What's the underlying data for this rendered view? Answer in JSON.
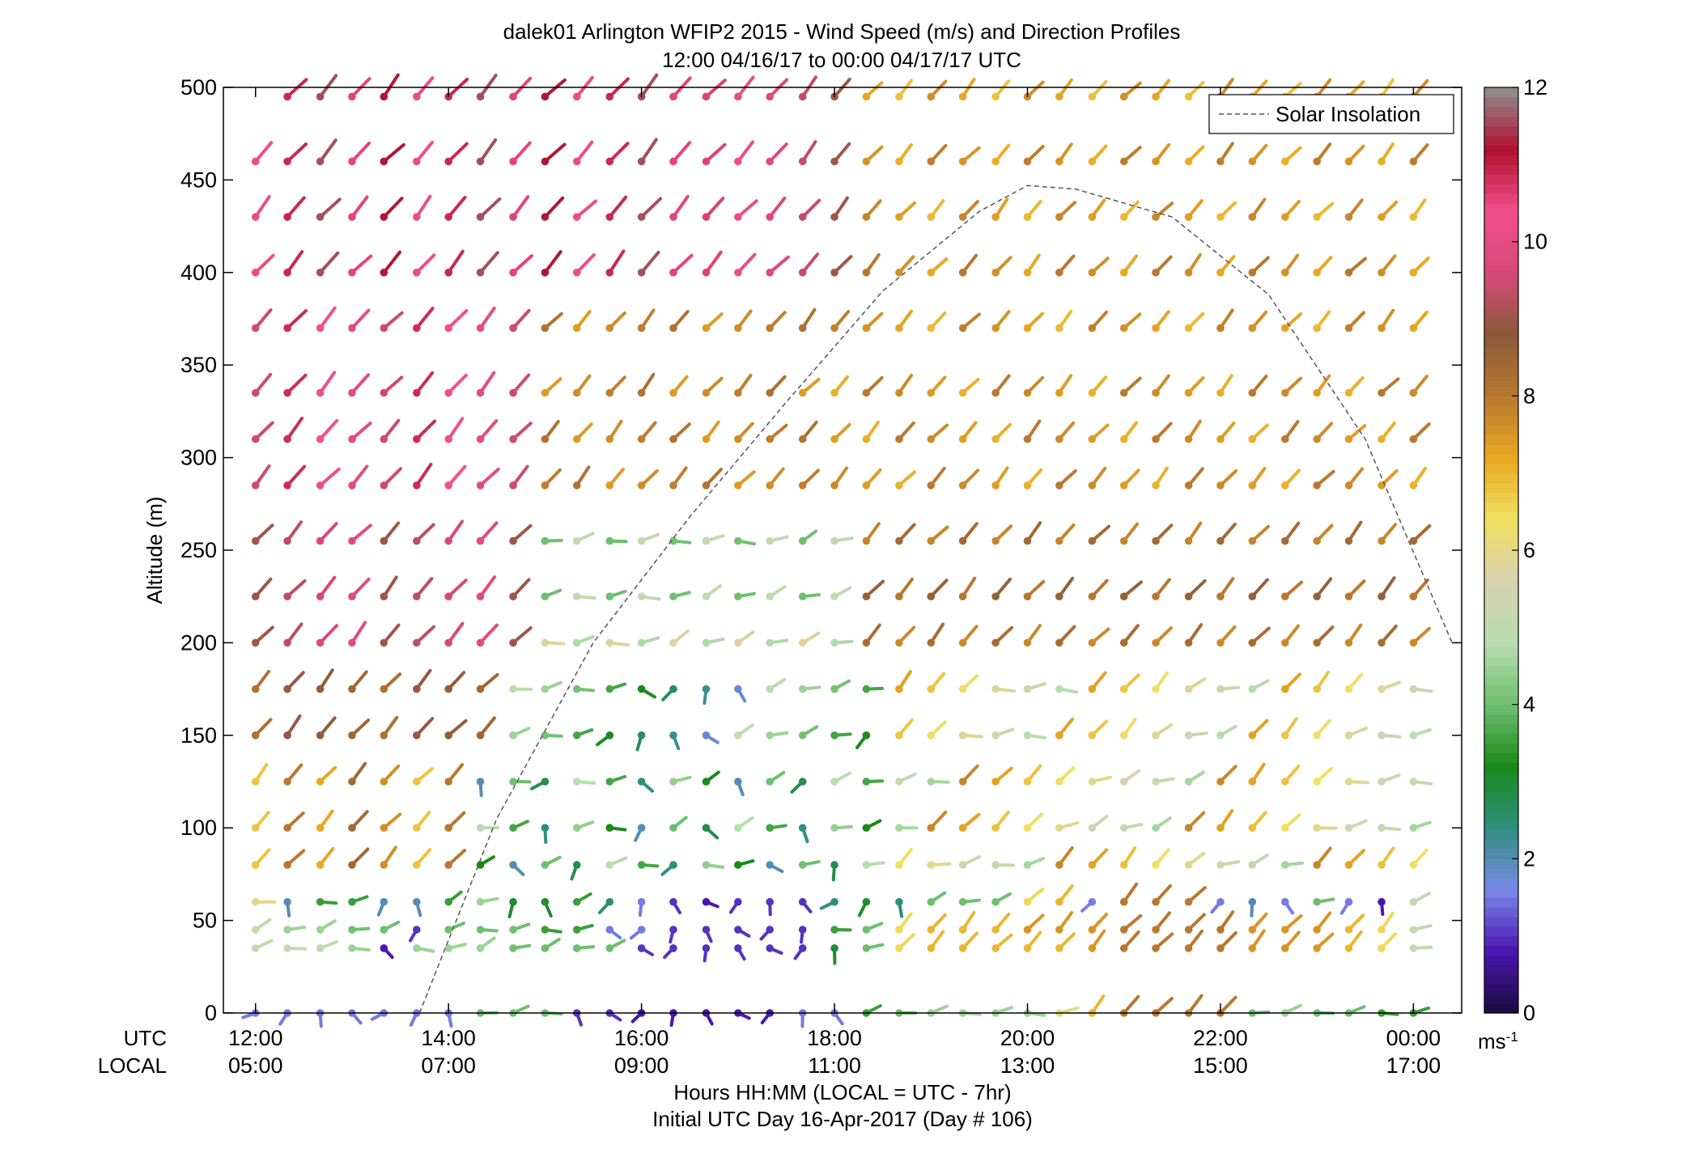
{
  "chart_data": {
    "type": "wind_barb_profile",
    "title": "dalek01 Arlington WFIP2 2015 - Wind Speed (m/s) and Direction Profiles",
    "subtitle": "12:00 04/16/17 to 00:00 04/17/17  UTC",
    "ylabel": "Altitude (m)",
    "xlabel": "Hours HH:MM  (LOCAL = UTC - 7hr)",
    "xlabel2": "Initial UTC Day 16-Apr-2017 (Day # 106)",
    "x_row_labels": [
      "UTC",
      "LOCAL"
    ],
    "x_ticks_utc": [
      "12:00",
      "14:00",
      "16:00",
      "18:00",
      "20:00",
      "22:00",
      "00:00"
    ],
    "x_ticks_local": [
      "05:00",
      "07:00",
      "09:00",
      "11:00",
      "13:00",
      "15:00",
      "17:00"
    ],
    "xlim_hours": [
      11.6667,
      24.5
    ],
    "ylim": [
      0,
      500
    ],
    "y_ticks": [
      0,
      50,
      100,
      150,
      200,
      250,
      300,
      350,
      400,
      450,
      500
    ],
    "legend": {
      "entries": [
        "Solar Insolation"
      ],
      "location": "top-right"
    },
    "colorbar": {
      "label": "ms",
      "label_superscript": "-1",
      "range": [
        0,
        12
      ],
      "ticks": [
        0,
        2,
        4,
        6,
        8,
        10,
        12
      ],
      "stops": [
        "#1b0a3c",
        "#4a16b0",
        "#7a89e8",
        "#2f8f7f",
        "#1a8a1a",
        "#6fbf6f",
        "#b8ddb0",
        "#d8d0b0",
        "#f0e060",
        "#e8a820",
        "#b87830",
        "#8b5a3a",
        "#d84878",
        "#f05088",
        "#b01030",
        "#909090"
      ]
    },
    "solar_insolation_curve": {
      "x_hours": [
        13.7,
        14.5,
        15.5,
        16.5,
        17.5,
        18.5,
        19.5,
        20.0,
        20.5,
        21.5,
        22.5,
        23.5,
        24.4
      ],
      "y_altitude": [
        0,
        105,
        200,
        268,
        330,
        390,
        433,
        447,
        445,
        430,
        388,
        310,
        200
      ]
    },
    "observations": {
      "times_hours": [
        12.0,
        12.33,
        12.67,
        13.0,
        13.33,
        13.67,
        14.0,
        14.33,
        14.67,
        15.0,
        15.33,
        15.67,
        16.0,
        16.33,
        16.67,
        17.0,
        17.33,
        17.67,
        18.0,
        18.33,
        18.67,
        19.0,
        19.33,
        19.67,
        20.0,
        20.33,
        20.67,
        21.0,
        21.33,
        21.67,
        22.0,
        22.33,
        22.67,
        23.0,
        23.33,
        23.67,
        24.0
      ],
      "altitudes_m": [
        0,
        35,
        45,
        60,
        80,
        100,
        125,
        150,
        175,
        200,
        225,
        255,
        285,
        310,
        335,
        370,
        400,
        430,
        460,
        495
      ],
      "speed_profile_ms": [
        {
          "alt": 0,
          "speeds": [
            1.5,
            1.5,
            1.5,
            1.5,
            1.5,
            1.5,
            1.5,
            4.0,
            4.0,
            4.0,
            1.0,
            1.0,
            0.8,
            0.8,
            0.8,
            0.8,
            0.8,
            1.5,
            1.5,
            3.5,
            4.0,
            4.5,
            4.5,
            4.5,
            4.5,
            6.0,
            7.0,
            8.0,
            8.0,
            8.0,
            8.0,
            4.0,
            4.5,
            4.0,
            4.0,
            3.5,
            3.5
          ]
        },
        {
          "alt": 35,
          "speeds": [
            5.0,
            5.0,
            5.0,
            4.5,
            0.8,
            4.5,
            4.5,
            4.5,
            4.0,
            4.0,
            4.0,
            4.0,
            1.0,
            1.0,
            1.0,
            1.0,
            1.0,
            1.0,
            3.0,
            4.0,
            6.5,
            7.0,
            7.0,
            7.0,
            7.0,
            7.0,
            7.5,
            8.0,
            8.0,
            8.0,
            8.0,
            7.5,
            7.5,
            7.5,
            7.0,
            6.5,
            5.0
          ]
        },
        {
          "alt": 45,
          "speeds": [
            5.0,
            4.5,
            4.5,
            4.0,
            4.0,
            1.0,
            4.0,
            4.0,
            4.0,
            3.5,
            3.5,
            1.5,
            1.5,
            1.0,
            1.0,
            1.0,
            1.0,
            1.0,
            3.5,
            4.0,
            6.5,
            7.0,
            7.0,
            7.0,
            7.5,
            7.5,
            7.5,
            8.0,
            8.0,
            8.0,
            8.0,
            7.5,
            7.5,
            7.5,
            7.0,
            6.5,
            5.0
          ]
        },
        {
          "alt": 60,
          "speeds": [
            6.0,
            2.0,
            3.5,
            3.5,
            2.0,
            2.0,
            3.5,
            4.5,
            3.0,
            3.0,
            3.5,
            2.5,
            1.5,
            1.0,
            0.8,
            1.0,
            1.0,
            1.0,
            2.5,
            3.0,
            2.5,
            4.0,
            4.0,
            4.0,
            6.5,
            7.0,
            1.5,
            8.0,
            8.0,
            8.0,
            1.5,
            2.0,
            1.5,
            4.0,
            1.5,
            0.8,
            5.0
          ]
        }
      ]
    }
  }
}
